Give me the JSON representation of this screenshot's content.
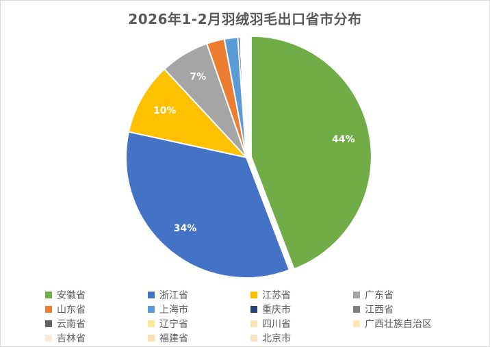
{
  "chart_data": {
    "type": "pie",
    "title": "2026年1-2月羽绒羽毛出口省市分布",
    "categories": [
      "安徽省",
      "浙江省",
      "江苏省",
      "广东省",
      "山东省",
      "上海市",
      "重庆市",
      "江西省",
      "云南省",
      "辽宁省",
      "四川省",
      "广西壮族自治区",
      "吉林省",
      "福建省",
      "北京市"
    ],
    "values": [
      44.3,
      34.3,
      9.7,
      6.6,
      2.4,
      1.8,
      0.3,
      0.2,
      0.15,
      0.12,
      0.1,
      0.1,
      0.08,
      0.05,
      0.04
    ],
    "colors": [
      "#70ad47",
      "#4472c4",
      "#ffc000",
      "#a5a5a5",
      "#ed7d31",
      "#5b9bd5",
      "#264478",
      "#7f7f7f",
      "#636363",
      "#ffe699",
      "#fbe5b8",
      "#ffe7b3",
      "#fde9d9",
      "#ffe0b3",
      "#f8e2c2"
    ],
    "data_labels": [
      "44%",
      "34%",
      "10%",
      "7%",
      "",
      "",
      "",
      "",
      "",
      "",
      "",
      "",
      "",
      "",
      ""
    ],
    "exploded": "安徽省",
    "legend_position": "bottom"
  }
}
